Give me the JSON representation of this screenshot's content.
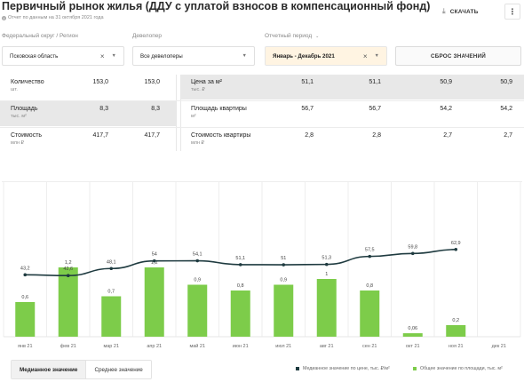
{
  "header": {
    "title": "Первичный рынок жилья (ДДУ с уплатой взносов в компенсационный фонд)",
    "subtitle": "Отчет по данным на 31 октября 2021 года",
    "download_label": "СКАЧАТЬ",
    "more_icon": "kebab-menu-icon"
  },
  "filters": {
    "region_label": "Федеральный округ / Регион",
    "region_value": "Псковская область",
    "developer_label": "Девелопер",
    "developer_value": "Все девелоперы",
    "period_label": "Отчетный период",
    "period_value": "Январь - Декабрь 2021",
    "reset_label": "СБРОС ЗНАЧЕНИЙ",
    "active_color": "#fff4e2"
  },
  "stats_left": [
    {
      "label": "Количество",
      "unit": "шт.",
      "v1": "153,0",
      "v2": "153,0"
    },
    {
      "label": "Площадь",
      "unit": "тыс. м²",
      "v1": "8,3",
      "v2": "8,3"
    },
    {
      "label": "Стоимость",
      "unit": "млн ₽",
      "v1": "417,7",
      "v2": "417,7"
    }
  ],
  "stats_right": [
    {
      "label": "Цена за м²",
      "unit": "тыс. ₽",
      "v1": "51,1",
      "v2": "51,1",
      "v3": "50,9",
      "v4": "50,9"
    },
    {
      "label": "Площадь квартиры",
      "unit": "м²",
      "v1": "56,7",
      "v2": "56,7",
      "v3": "54,2",
      "v4": "54,2"
    },
    {
      "label": "Стоимость квартиры",
      "unit": "млн ₽",
      "v1": "2,8",
      "v2": "2,8",
      "v3": "2,7",
      "v4": "2,7"
    }
  ],
  "chart_data": {
    "type": "bar",
    "categories": [
      "янв 21",
      "фев 21",
      "мар 21",
      "апр 21",
      "май 21",
      "июн 21",
      "июл 21",
      "авг 21",
      "сен 21",
      "окт 21",
      "ноя 21",
      "дек 21"
    ],
    "series": [
      {
        "name": "Общее значение по площади, тыс. м²",
        "type": "bar",
        "values": [
          0.6,
          1.2,
          0.7,
          1.2,
          0.9,
          0.8,
          0.9,
          1,
          0.8,
          0.06,
          0.2,
          null
        ],
        "labels": [
          "0,6",
          "1,2",
          "0,7",
          "1,2",
          "0,9",
          "0,8",
          "0,9",
          "1",
          "0,8",
          "0,06",
          "0,2",
          ""
        ],
        "color": "#7dcc4a"
      },
      {
        "name": "Медианное значение по цене, тыс. ₽/м²",
        "type": "line",
        "values": [
          43.2,
          42.6,
          48.1,
          54,
          54.1,
          51.1,
          51,
          51.3,
          57.5,
          59.8,
          62.9,
          null
        ],
        "labels": [
          "43,2",
          "42,6",
          "48,1",
          "54",
          "54,1",
          "51,1",
          "51",
          "51,3",
          "57,5",
          "59,8",
          "62,9",
          ""
        ],
        "color": "#1f3b40"
      }
    ],
    "bar_ylim": [
      0,
      1.4
    ],
    "line_ylim": [
      0,
      100
    ],
    "grid": "vertical",
    "legend": "bottom-right"
  },
  "tabs": [
    {
      "label": "Медианное значение",
      "active": true
    },
    {
      "label": "Среднее значение",
      "active": false
    }
  ],
  "legend": {
    "line_label": "Медианное значение по цене, тыс. ₽/м²",
    "bar_label": "Общее значение по площади, тыс. м²"
  }
}
